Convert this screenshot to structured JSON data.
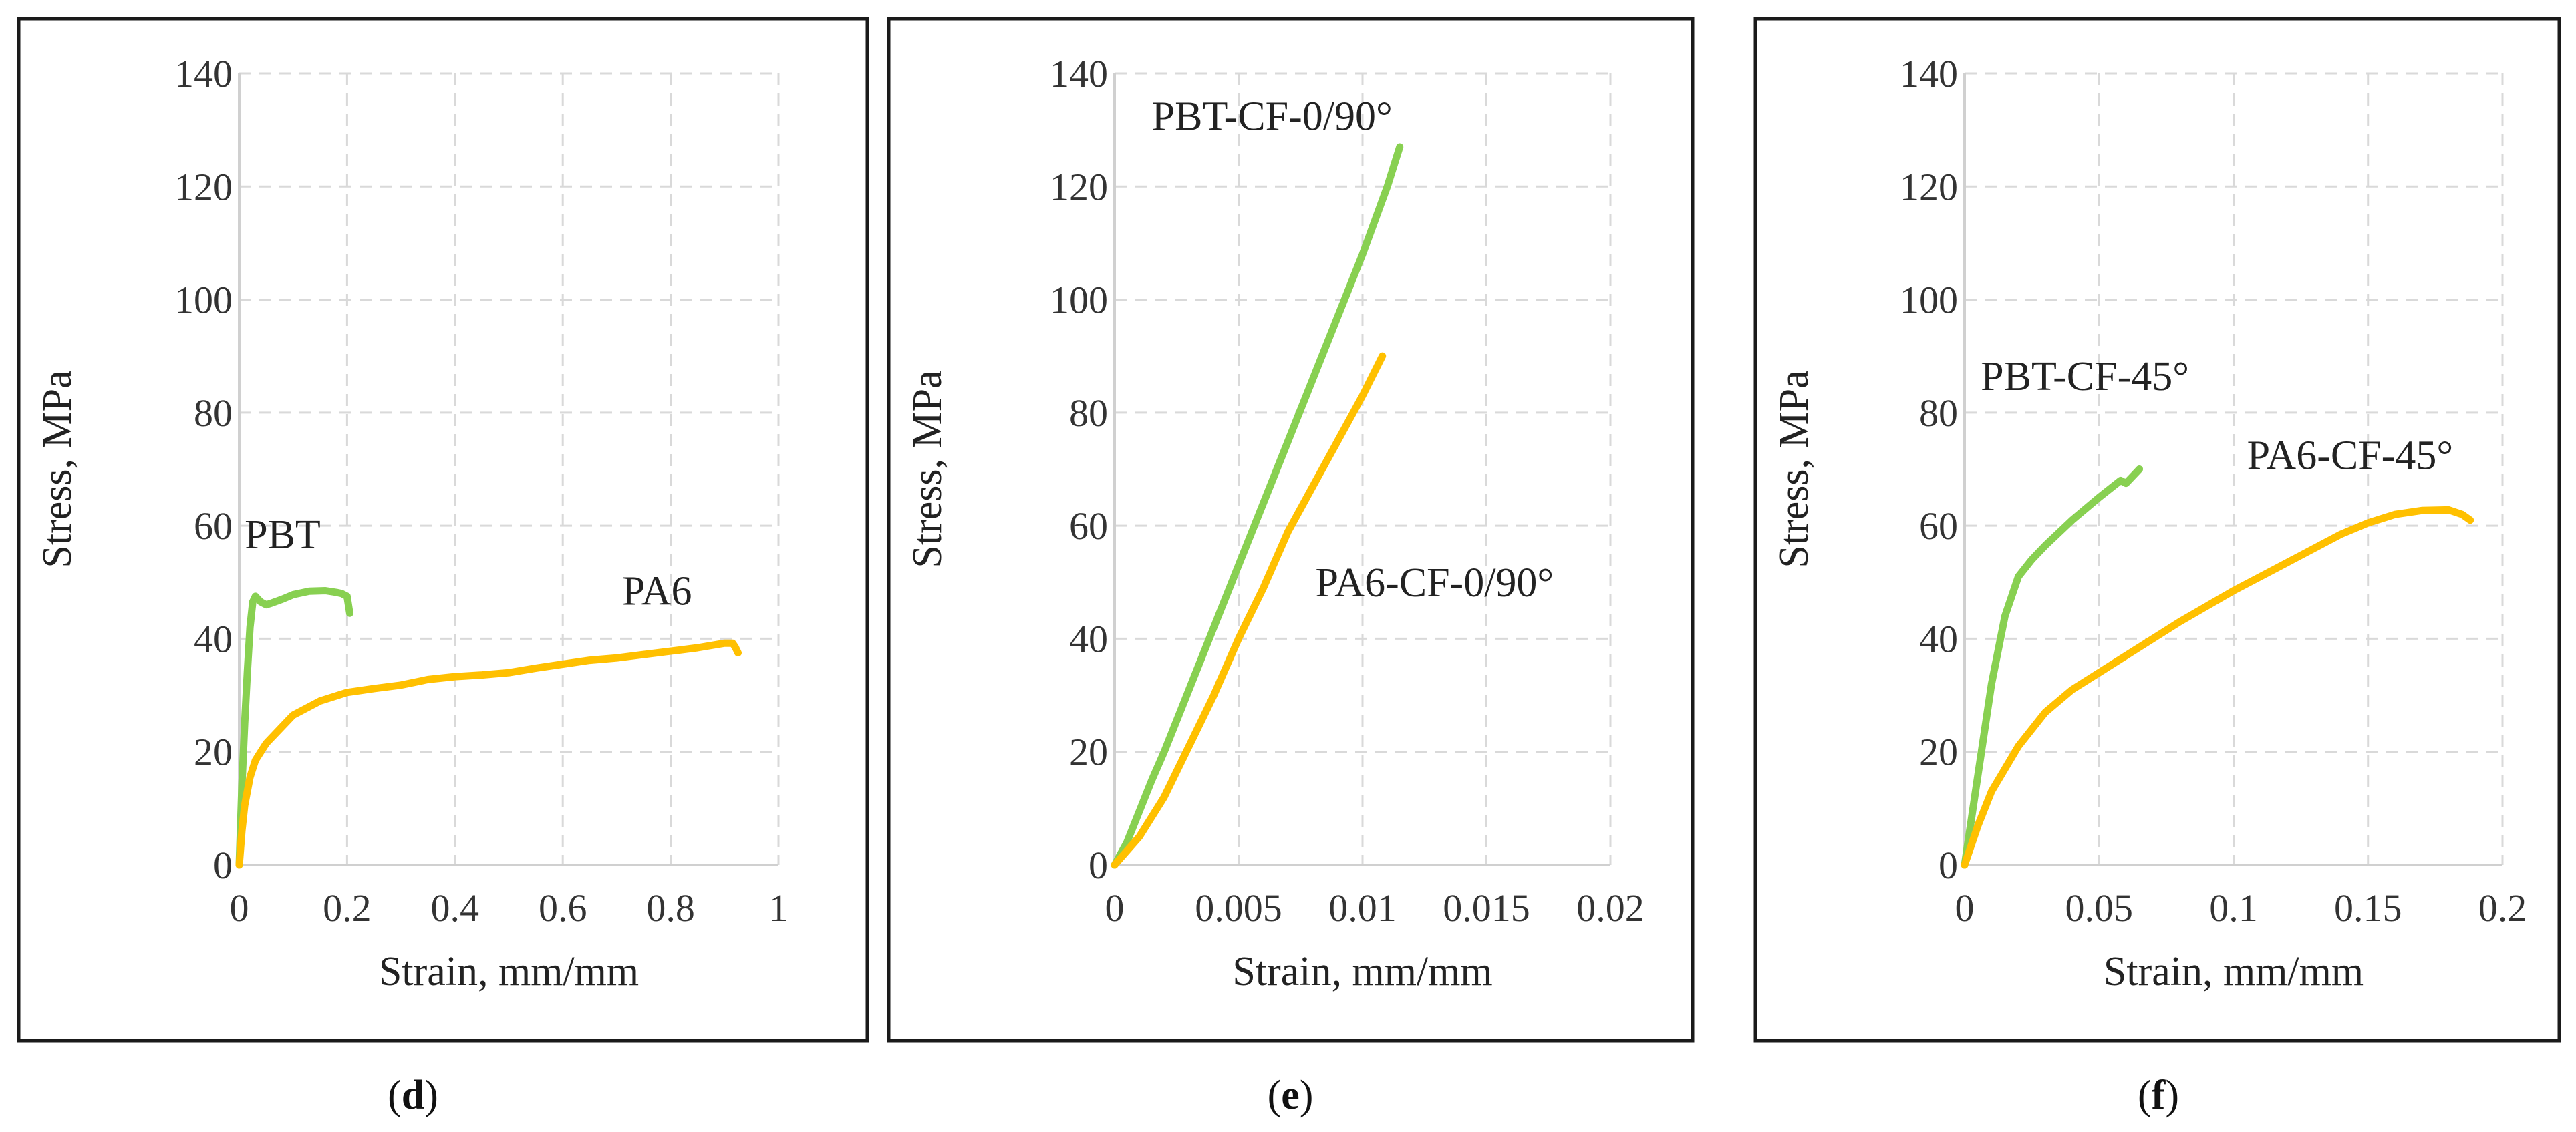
{
  "colors": {
    "PBT": "#88d051",
    "PA6": "#ffc000",
    "grid": "#d9d9d9",
    "frame": "#1a1a1a"
  },
  "chart_data": [
    {
      "id": "d",
      "type": "line",
      "caption": "d",
      "xlabel": "Strain, mm/mm",
      "ylabel": "Stress, MPa",
      "xlim": [
        0,
        1
      ],
      "ylim": [
        0,
        140
      ],
      "xticks": [
        0,
        0.2,
        0.4,
        0.6,
        0.8,
        1
      ],
      "xtick_labels": [
        "0",
        "0.2",
        "0.4",
        "0.6",
        "0.8",
        "1"
      ],
      "yticks": [
        0,
        20,
        40,
        60,
        80,
        100,
        120,
        140
      ],
      "ytick_labels": [
        "0",
        "20",
        "40",
        "60",
        "80",
        "100",
        "120",
        "140"
      ],
      "series": [
        {
          "name": "PBT",
          "label": "PBT",
          "color_key": "PBT",
          "label_at": [
            0.01,
            56
          ],
          "label_anchor": "start",
          "x": [
            0,
            0.005,
            0.01,
            0.015,
            0.02,
            0.025,
            0.03,
            0.035,
            0.04,
            0.05,
            0.06,
            0.08,
            0.1,
            0.13,
            0.16,
            0.18,
            0.19,
            0.2,
            0.205
          ],
          "y": [
            0,
            14,
            25,
            34,
            42,
            46.5,
            47.5,
            47,
            46.5,
            46,
            46.3,
            47,
            47.8,
            48.4,
            48.5,
            48.2,
            48,
            47.5,
            44.5
          ]
        },
        {
          "name": "PA6",
          "label": "PA6",
          "color_key": "PA6",
          "label_at": [
            0.71,
            46
          ],
          "label_anchor": "start",
          "x": [
            0,
            0.005,
            0.01,
            0.02,
            0.03,
            0.05,
            0.08,
            0.1,
            0.15,
            0.2,
            0.25,
            0.3,
            0.35,
            0.4,
            0.45,
            0.5,
            0.55,
            0.6,
            0.65,
            0.7,
            0.75,
            0.8,
            0.85,
            0.9,
            0.915,
            0.92,
            0.925
          ],
          "y": [
            0,
            6,
            10.5,
            15.5,
            18.5,
            21.5,
            24.5,
            26.5,
            29,
            30.5,
            31.2,
            31.8,
            32.8,
            33.3,
            33.6,
            34,
            34.8,
            35.5,
            36.2,
            36.6,
            37.2,
            37.8,
            38.4,
            39.2,
            39.2,
            38.5,
            37.5
          ]
        }
      ]
    },
    {
      "id": "e",
      "type": "line",
      "caption": "e",
      "xlabel": "Strain, mm/mm",
      "ylabel": "Stress, MPa",
      "xlim": [
        0,
        0.02
      ],
      "ylim": [
        0,
        140
      ],
      "xticks": [
        0,
        0.005,
        0.01,
        0.015,
        0.02
      ],
      "xtick_labels": [
        "0",
        "0.005",
        "0.01",
        "0.015",
        "0.02"
      ],
      "yticks": [
        0,
        20,
        40,
        60,
        80,
        100,
        120,
        140
      ],
      "ytick_labels": [
        "0",
        "20",
        "40",
        "60",
        "80",
        "100",
        "120",
        "140"
      ],
      "series": [
        {
          "name": "PBT-CF-0/90°",
          "label": "PBT-CF-0/90°",
          "color_key": "PBT",
          "label_at": [
            0.0015,
            130
          ],
          "label_anchor": "start",
          "x": [
            0,
            0.0005,
            0.001,
            0.0015,
            0.002,
            0.003,
            0.004,
            0.005,
            0.006,
            0.007,
            0.008,
            0.009,
            0.01,
            0.011,
            0.0115
          ],
          "y": [
            0,
            4,
            9.5,
            15,
            20,
            31,
            42,
            53,
            64,
            75,
            86,
            97,
            108,
            120,
            127
          ]
        },
        {
          "name": "PA6-CF-0/90°",
          "label": "PA6-CF-0/90°",
          "color_key": "PA6",
          "label_at": [
            0.0081,
            47.5
          ],
          "label_anchor": "start",
          "x": [
            0,
            0.001,
            0.002,
            0.003,
            0.004,
            0.005,
            0.006,
            0.007,
            0.008,
            0.009,
            0.01,
            0.0108
          ],
          "y": [
            0,
            5,
            12,
            21,
            30,
            40,
            49,
            59,
            67,
            75,
            83,
            90
          ]
        }
      ]
    },
    {
      "id": "f",
      "type": "line",
      "caption": "f",
      "xlabel": "Strain, mm/mm",
      "ylabel": "Stress, MPa",
      "xlim": [
        0,
        0.2
      ],
      "ylim": [
        0,
        140
      ],
      "xticks": [
        0,
        0.05,
        0.1,
        0.15,
        0.2
      ],
      "xtick_labels": [
        "0",
        "0.05",
        "0.1",
        "0.15",
        "0.2"
      ],
      "yticks": [
        0,
        20,
        40,
        60,
        80,
        100,
        120,
        140
      ],
      "ytick_labels": [
        "0",
        "20",
        "40",
        "60",
        "80",
        "100",
        "120",
        "140"
      ],
      "series": [
        {
          "name": "PBT-CF-45°",
          "label": "PBT-CF-45°",
          "color_key": "PBT",
          "label_at": [
            0.006,
            84
          ],
          "label_anchor": "start",
          "x": [
            0,
            0.005,
            0.01,
            0.015,
            0.02,
            0.025,
            0.03,
            0.04,
            0.05,
            0.058,
            0.06,
            0.063,
            0.065
          ],
          "y": [
            0,
            16,
            32,
            44,
            51,
            54,
            56.5,
            61,
            65,
            68,
            67.5,
            69,
            70
          ]
        },
        {
          "name": "PA6-CF-45°",
          "label": "PA6-CF-45°",
          "color_key": "PA6",
          "label_at": [
            0.105,
            70
          ],
          "label_anchor": "start",
          "x": [
            0,
            0.005,
            0.01,
            0.02,
            0.03,
            0.04,
            0.05,
            0.06,
            0.07,
            0.08,
            0.1,
            0.12,
            0.14,
            0.15,
            0.16,
            0.17,
            0.18,
            0.185,
            0.188
          ],
          "y": [
            0,
            7,
            13,
            21,
            27,
            31,
            34,
            37,
            40,
            43,
            48.5,
            53.5,
            58.5,
            60.5,
            62,
            62.7,
            62.8,
            62,
            61
          ]
        }
      ]
    }
  ]
}
